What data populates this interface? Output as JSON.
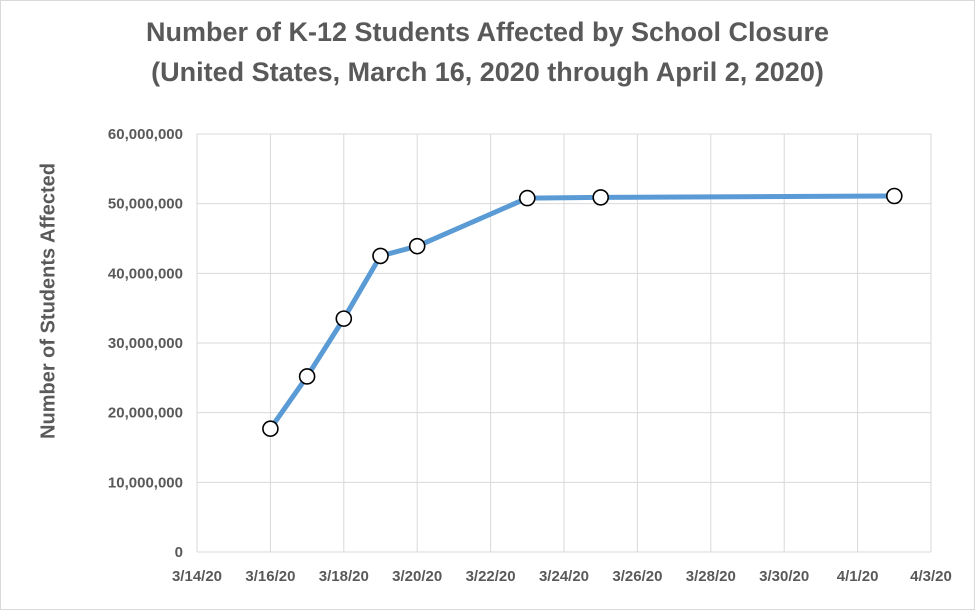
{
  "chart_data": {
    "type": "line",
    "title": "Number of K-12 Students Affected by School Closure",
    "subtitle": "(United States, March 16, 2020 through April 2, 2020)",
    "xlabel": "",
    "ylabel": "Number of Students Affected",
    "x_ticks": [
      "3/14/20",
      "3/16/20",
      "3/18/20",
      "3/20/20",
      "3/22/20",
      "3/24/20",
      "3/26/20",
      "3/28/20",
      "3/30/20",
      "4/1/20",
      "4/3/20"
    ],
    "y_ticks": [
      "0",
      "10,000,000",
      "20,000,000",
      "30,000,000",
      "40,000,000",
      "50,000,000",
      "60,000,000"
    ],
    "xlim": [
      "2020-03-14",
      "2020-04-03"
    ],
    "ylim": [
      0,
      60000000
    ],
    "grid": true,
    "series": [
      {
        "x": [
          "2020-03-16",
          "2020-03-17",
          "2020-03-18",
          "2020-03-19",
          "2020-03-20",
          "2020-03-23",
          "2020-03-25",
          "2020-04-02"
        ],
        "values": [
          17700000,
          25200000,
          33500000,
          42500000,
          43900000,
          50800000,
          50900000,
          51100000
        ]
      }
    ],
    "colors": {
      "line": "#5b9bd5",
      "marker_fill": "#ffffff",
      "marker_edge": "#000000",
      "grid": "#d9d9d9",
      "text": "#595959"
    }
  }
}
